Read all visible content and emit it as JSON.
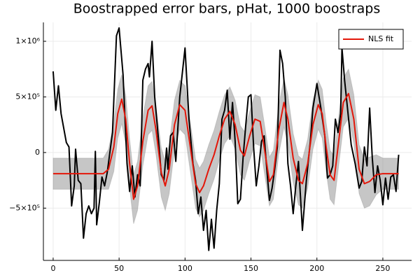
{
  "chart_data": {
    "type": "line",
    "title": "Boostrapped error bars, pHat, 1000 boostraps",
    "xlim": [
      -7.4,
      271.8
    ],
    "xticks": [
      0,
      50,
      100,
      150,
      200,
      250
    ],
    "ylim": [
      -970000,
      1170000
    ],
    "yticks": [
      {
        "value": -500000,
        "label": "−5×10⁵"
      },
      0,
      {
        "value": 500000,
        "label": "5×10⁵"
      },
      {
        "value": 1000000,
        "label": "1×10⁶"
      }
    ],
    "grid": true,
    "legend": "top-right",
    "band": {
      "color": "#808080",
      "x": [
        0,
        38,
        42,
        46,
        49,
        52,
        55,
        58,
        61,
        64,
        68,
        72,
        75,
        78,
        82,
        85,
        88,
        92,
        96,
        100,
        104,
        108,
        111,
        114,
        118,
        122,
        126,
        130,
        134,
        138,
        142,
        145,
        149,
        153,
        157,
        160,
        164,
        167,
        171,
        175,
        178,
        182,
        186,
        189,
        193,
        197,
        201,
        204,
        207,
        210,
        213,
        216,
        220,
        224,
        228,
        232,
        236,
        240,
        245,
        250,
        262
      ],
      "upper": [
        -50000,
        -50000,
        30000,
        270000,
        570000,
        700000,
        520000,
        120000,
        -200000,
        -80000,
        320000,
        600000,
        640000,
        420000,
        40000,
        -80000,
        70000,
        470000,
        650000,
        600000,
        270000,
        -60000,
        -140000,
        -80000,
        70000,
        200000,
        370000,
        520000,
        590000,
        470000,
        240000,
        190000,
        370000,
        520000,
        500000,
        270000,
        -40000,
        20000,
        420000,
        670000,
        520000,
        170000,
        -30000,
        -60000,
        120000,
        470000,
        650000,
        570000,
        270000,
        20000,
        -30000,
        270000,
        670000,
        750000,
        520000,
        70000,
        -60000,
        -40000,
        -20000,
        -50000,
        -50000
      ],
      "lower": [
        -330000,
        -330000,
        -330000,
        -170000,
        130000,
        260000,
        80000,
        -320000,
        -640000,
        -520000,
        -120000,
        160000,
        200000,
        -20000,
        -400000,
        -520000,
        -370000,
        30000,
        210000,
        160000,
        -170000,
        -500000,
        -580000,
        -520000,
        -370000,
        -240000,
        -70000,
        80000,
        150000,
        30000,
        -200000,
        -250000,
        -70000,
        80000,
        60000,
        -170000,
        -480000,
        -420000,
        -20000,
        230000,
        80000,
        -270000,
        -470000,
        -500000,
        -320000,
        30000,
        210000,
        130000,
        -170000,
        -420000,
        -470000,
        -170000,
        230000,
        310000,
        80000,
        -370000,
        -500000,
        -480000,
        -380000,
        -330000,
        -330000
      ]
    },
    "series": [
      {
        "color": "#000000",
        "x": [
          0,
          2,
          4,
          6,
          10,
          12,
          14,
          16,
          17,
          19,
          21,
          23,
          25,
          27,
          29,
          31,
          32,
          33,
          35,
          37,
          39,
          41,
          45,
          48,
          50,
          53,
          56,
          58,
          60,
          62,
          64,
          66,
          68,
          70,
          72,
          73,
          75,
          77,
          80,
          82,
          84,
          86,
          87,
          89,
          91,
          93,
          96,
          98,
          100,
          103,
          106,
          108,
          110,
          112,
          114,
          116,
          118,
          120,
          122,
          124,
          126,
          128,
          130,
          132,
          134,
          136,
          138,
          140,
          142,
          144,
          146,
          148,
          150,
          152,
          154,
          156,
          158,
          160,
          162,
          164,
          166,
          168,
          170,
          172,
          174,
          176,
          178,
          180,
          182,
          184,
          186,
          189,
          192,
          195,
          197,
          200,
          203,
          206,
          208,
          210,
          212,
          214,
          216,
          218,
          219,
          221,
          223,
          226,
          229,
          232,
          234,
          236,
          238,
          240,
          242,
          244,
          246,
          248,
          250,
          252,
          254,
          256,
          258,
          260,
          262
        ],
        "values": [
          730000,
          380000,
          600000,
          350000,
          90000,
          50000,
          -480000,
          -300000,
          30000,
          -250000,
          -280000,
          -770000,
          -550000,
          -480000,
          -550000,
          -500000,
          10000,
          -650000,
          -450000,
          -220000,
          -300000,
          -180000,
          180000,
          1050000,
          1120000,
          700000,
          -100000,
          -350000,
          -120000,
          -400000,
          -200000,
          -300000,
          650000,
          750000,
          800000,
          680000,
          1000000,
          500000,
          100000,
          -200000,
          -250000,
          40000,
          -150000,
          150000,
          180000,
          -80000,
          500000,
          720000,
          940000,
          300000,
          -100000,
          -250000,
          -550000,
          -400000,
          -700000,
          -520000,
          -880000,
          -600000,
          -860000,
          -520000,
          -280000,
          300000,
          380000,
          560000,
          120000,
          450000,
          100000,
          -460000,
          -420000,
          -50000,
          240000,
          500000,
          520000,
          50000,
          -300000,
          -120000,
          100000,
          150000,
          -150000,
          -430000,
          -320000,
          -150000,
          50000,
          920000,
          800000,
          500000,
          -100000,
          -300000,
          -550000,
          -300000,
          -80000,
          -700000,
          -250000,
          100000,
          400000,
          620000,
          400000,
          150000,
          -230000,
          -200000,
          -120000,
          300000,
          180000,
          350000,
          940000,
          650000,
          420000,
          70000,
          -100000,
          -320000,
          -260000,
          50000,
          -120000,
          400000,
          -50000,
          -360000,
          -120000,
          -250000,
          -470000,
          -230000,
          -420000,
          -220000,
          -200000,
          -350000,
          -20000
        ]
      },
      {
        "name": "NLS fit",
        "color": "#e3170a",
        "x": [
          0,
          38,
          42,
          46,
          49,
          52,
          55,
          58,
          61,
          64,
          68,
          72,
          75,
          78,
          82,
          85,
          88,
          92,
          96,
          100,
          104,
          108,
          111,
          114,
          118,
          122,
          126,
          130,
          134,
          138,
          142,
          145,
          149,
          153,
          157,
          160,
          164,
          167,
          171,
          175,
          178,
          182,
          186,
          189,
          193,
          197,
          201,
          204,
          207,
          210,
          213,
          216,
          220,
          224,
          228,
          232,
          236,
          240,
          245,
          250,
          262
        ],
        "values": [
          -190000,
          -190000,
          -150000,
          50000,
          350000,
          480000,
          300000,
          -100000,
          -420000,
          -300000,
          100000,
          380000,
          420000,
          200000,
          -180000,
          -300000,
          -150000,
          250000,
          430000,
          380000,
          50000,
          -280000,
          -360000,
          -300000,
          -150000,
          -20000,
          150000,
          300000,
          370000,
          250000,
          20000,
          -30000,
          150000,
          300000,
          280000,
          50000,
          -260000,
          -200000,
          200000,
          450000,
          300000,
          -50000,
          -250000,
          -280000,
          -100000,
          250000,
          430000,
          350000,
          50000,
          -200000,
          -250000,
          50000,
          450000,
          530000,
          300000,
          -150000,
          -280000,
          -260000,
          -200000,
          -190000,
          -190000
        ]
      }
    ]
  }
}
